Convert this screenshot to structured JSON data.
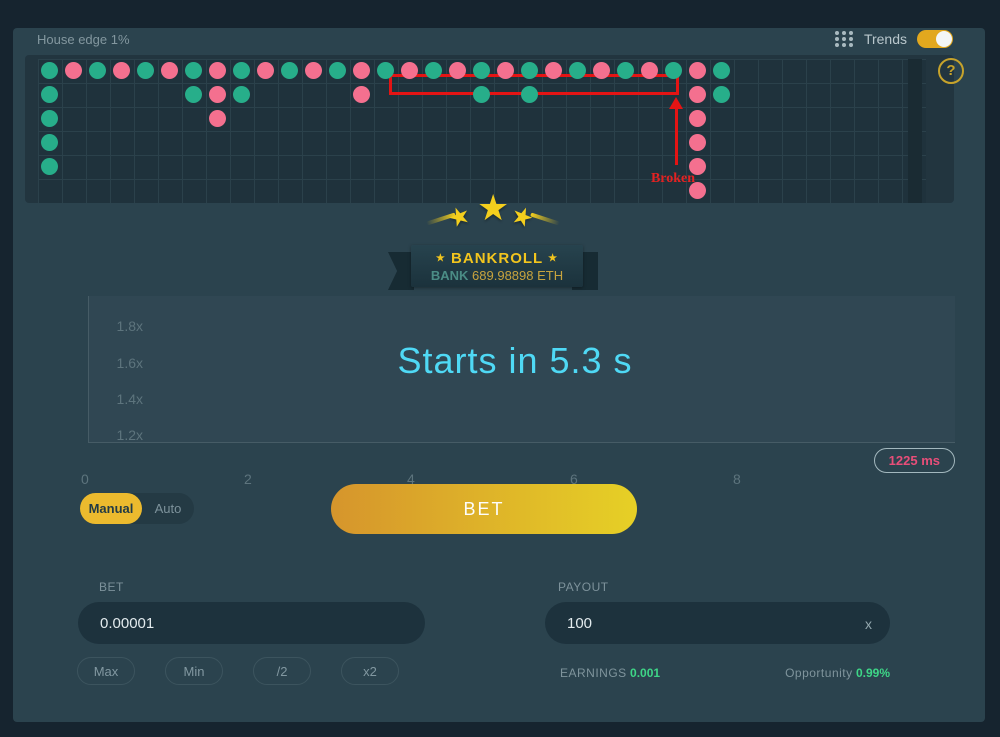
{
  "header": {
    "house_edge": "House edge 1%",
    "trends_label": "Trends",
    "trends_on": true,
    "help": "?"
  },
  "trends": {
    "cols": 37,
    "rows": 6,
    "green": "#27ae8a",
    "pink": "#f4708f",
    "dots": [
      {
        "c": 1,
        "r": 1,
        "k": "g"
      },
      {
        "c": 2,
        "r": 1,
        "k": "p"
      },
      {
        "c": 3,
        "r": 1,
        "k": "g"
      },
      {
        "c": 4,
        "r": 1,
        "k": "p"
      },
      {
        "c": 5,
        "r": 1,
        "k": "g"
      },
      {
        "c": 6,
        "r": 1,
        "k": "p"
      },
      {
        "c": 7,
        "r": 1,
        "k": "g"
      },
      {
        "c": 8,
        "r": 1,
        "k": "p"
      },
      {
        "c": 9,
        "r": 1,
        "k": "g"
      },
      {
        "c": 10,
        "r": 1,
        "k": "p"
      },
      {
        "c": 11,
        "r": 1,
        "k": "g"
      },
      {
        "c": 12,
        "r": 1,
        "k": "p"
      },
      {
        "c": 13,
        "r": 1,
        "k": "g"
      },
      {
        "c": 14,
        "r": 1,
        "k": "p"
      },
      {
        "c": 15,
        "r": 1,
        "k": "g"
      },
      {
        "c": 16,
        "r": 1,
        "k": "p"
      },
      {
        "c": 17,
        "r": 1,
        "k": "g"
      },
      {
        "c": 18,
        "r": 1,
        "k": "p"
      },
      {
        "c": 19,
        "r": 1,
        "k": "g"
      },
      {
        "c": 20,
        "r": 1,
        "k": "p"
      },
      {
        "c": 21,
        "r": 1,
        "k": "g"
      },
      {
        "c": 22,
        "r": 1,
        "k": "p"
      },
      {
        "c": 23,
        "r": 1,
        "k": "g"
      },
      {
        "c": 24,
        "r": 1,
        "k": "p"
      },
      {
        "c": 25,
        "r": 1,
        "k": "g"
      },
      {
        "c": 26,
        "r": 1,
        "k": "p"
      },
      {
        "c": 27,
        "r": 1,
        "k": "g"
      },
      {
        "c": 28,
        "r": 1,
        "k": "p"
      },
      {
        "c": 29,
        "r": 1,
        "k": "g"
      },
      {
        "c": 1,
        "r": 2,
        "k": "g"
      },
      {
        "c": 7,
        "r": 2,
        "k": "g"
      },
      {
        "c": 8,
        "r": 2,
        "k": "p"
      },
      {
        "c": 9,
        "r": 2,
        "k": "g"
      },
      {
        "c": 14,
        "r": 2,
        "k": "p"
      },
      {
        "c": 19,
        "r": 2,
        "k": "g"
      },
      {
        "c": 21,
        "r": 2,
        "k": "g"
      },
      {
        "c": 28,
        "r": 2,
        "k": "p"
      },
      {
        "c": 29,
        "r": 2,
        "k": "g"
      },
      {
        "c": 1,
        "r": 3,
        "k": "g"
      },
      {
        "c": 8,
        "r": 3,
        "k": "p"
      },
      {
        "c": 28,
        "r": 3,
        "k": "p"
      },
      {
        "c": 1,
        "r": 4,
        "k": "g"
      },
      {
        "c": 28,
        "r": 4,
        "k": "p"
      },
      {
        "c": 1,
        "r": 5,
        "k": "g"
      },
      {
        "c": 28,
        "r": 5,
        "k": "p"
      },
      {
        "c": 28,
        "r": 6,
        "k": "p"
      }
    ],
    "annotation": {
      "label": "Broken",
      "color": "#e41414"
    }
  },
  "bankroll": {
    "star": "★",
    "title": "BANKROLL",
    "bank_label": "BANK",
    "bank_value": "689.98898 ETH"
  },
  "chart": {
    "y_ticks": [
      "1.8x",
      "1.6x",
      "1.4x",
      "1.2x"
    ],
    "x_ticks": [
      "0",
      "2",
      "4",
      "6",
      "8"
    ],
    "countdown": "Starts in 5.3 s",
    "latency": "1225 ms",
    "countdown_color": "#4fd9f5"
  },
  "controls": {
    "manual": "Manual",
    "auto": "Auto",
    "bet_button": "BET"
  },
  "bet_panel": {
    "label": "BET",
    "value": "0.00001",
    "buttons": [
      "Max",
      "Min",
      "/2",
      "x2"
    ]
  },
  "payout_panel": {
    "label": "PAYOUT",
    "value": "100",
    "suffix": "x",
    "earnings_label": "EARNINGS",
    "earnings_value": "0.001",
    "opportunity_label": "Opportunity",
    "opportunity_value": "0.99%"
  }
}
